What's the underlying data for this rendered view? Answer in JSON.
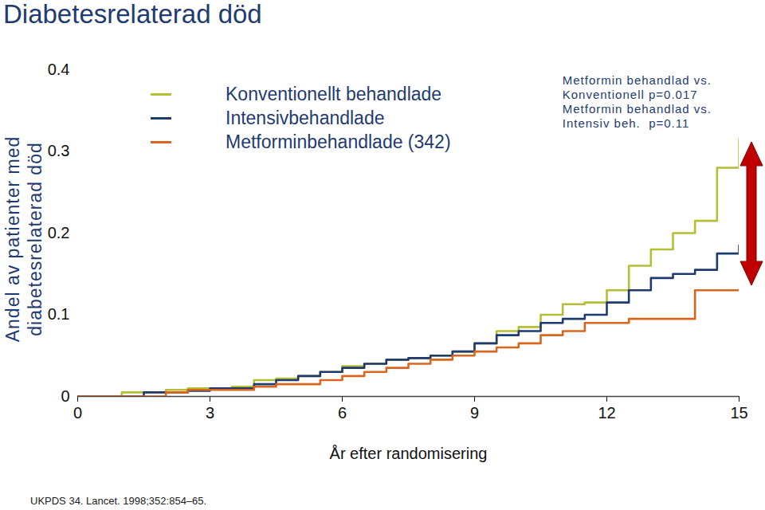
{
  "chart_data": {
    "type": "line",
    "title": "Diabetesrelaterad död",
    "x_label": "År efter randomisering",
    "y_label": "Andel av patienter med diabetesrelaterad död",
    "source": "UKPDS 34. Lancet. 1998;352:854–65.",
    "annotations": [
      "Metformin behandlad vs.",
      "Konventionell p=0.017",
      "Metformin behandlad vs.",
      "Intensiv beh.  p=0.11"
    ],
    "x": [
      0,
      0.5,
      1,
      1.5,
      2,
      2.5,
      3,
      3.5,
      4,
      4.5,
      5,
      5.5,
      6,
      6.5,
      7,
      7.5,
      8,
      8.5,
      9,
      9.5,
      10,
      10.5,
      11,
      11.5,
      12,
      12.5,
      13,
      13.5,
      14,
      14.5,
      15
    ],
    "series": [
      {
        "name": "Konventionellt behandlade",
        "color": "#b5bf35",
        "values": [
          0,
          0,
          0.005,
          0.005,
          0.008,
          0.01,
          0.01,
          0.012,
          0.02,
          0.022,
          0.025,
          0.03,
          0.037,
          0.04,
          0.045,
          0.047,
          0.05,
          0.055,
          0.065,
          0.08,
          0.085,
          0.1,
          0.113,
          0.115,
          0.13,
          0.16,
          0.18,
          0.2,
          0.215,
          0.28,
          0.315
        ]
      },
      {
        "name": "Intensivbehandlade",
        "color": "#1e3a6e",
        "values": [
          0,
          0,
          0,
          0.005,
          0.005,
          0.007,
          0.01,
          0.01,
          0.015,
          0.02,
          0.025,
          0.03,
          0.035,
          0.04,
          0.045,
          0.047,
          0.05,
          0.055,
          0.065,
          0.075,
          0.08,
          0.09,
          0.095,
          0.1,
          0.115,
          0.13,
          0.145,
          0.15,
          0.155,
          0.175,
          0.185
        ]
      },
      {
        "name": "Metforminbehandlade (342)",
        "color": "#d8661f",
        "values": [
          0,
          0,
          0,
          0,
          0.005,
          0.008,
          0.008,
          0.008,
          0.012,
          0.015,
          0.015,
          0.02,
          0.025,
          0.03,
          0.035,
          0.04,
          0.045,
          0.05,
          0.055,
          0.06,
          0.065,
          0.075,
          0.08,
          0.09,
          0.09,
          0.095,
          0.095,
          0.095,
          0.13,
          0.13,
          0.13
        ]
      }
    ],
    "xlim": [
      0,
      15
    ],
    "ylim": [
      0,
      0.4
    ],
    "xticks": [
      0,
      3,
      6,
      9,
      12,
      15
    ],
    "yticks": [
      0,
      0.1,
      0.2,
      0.3,
      0.4
    ],
    "grid": false,
    "legend": "top-left",
    "line_style": "step"
  }
}
